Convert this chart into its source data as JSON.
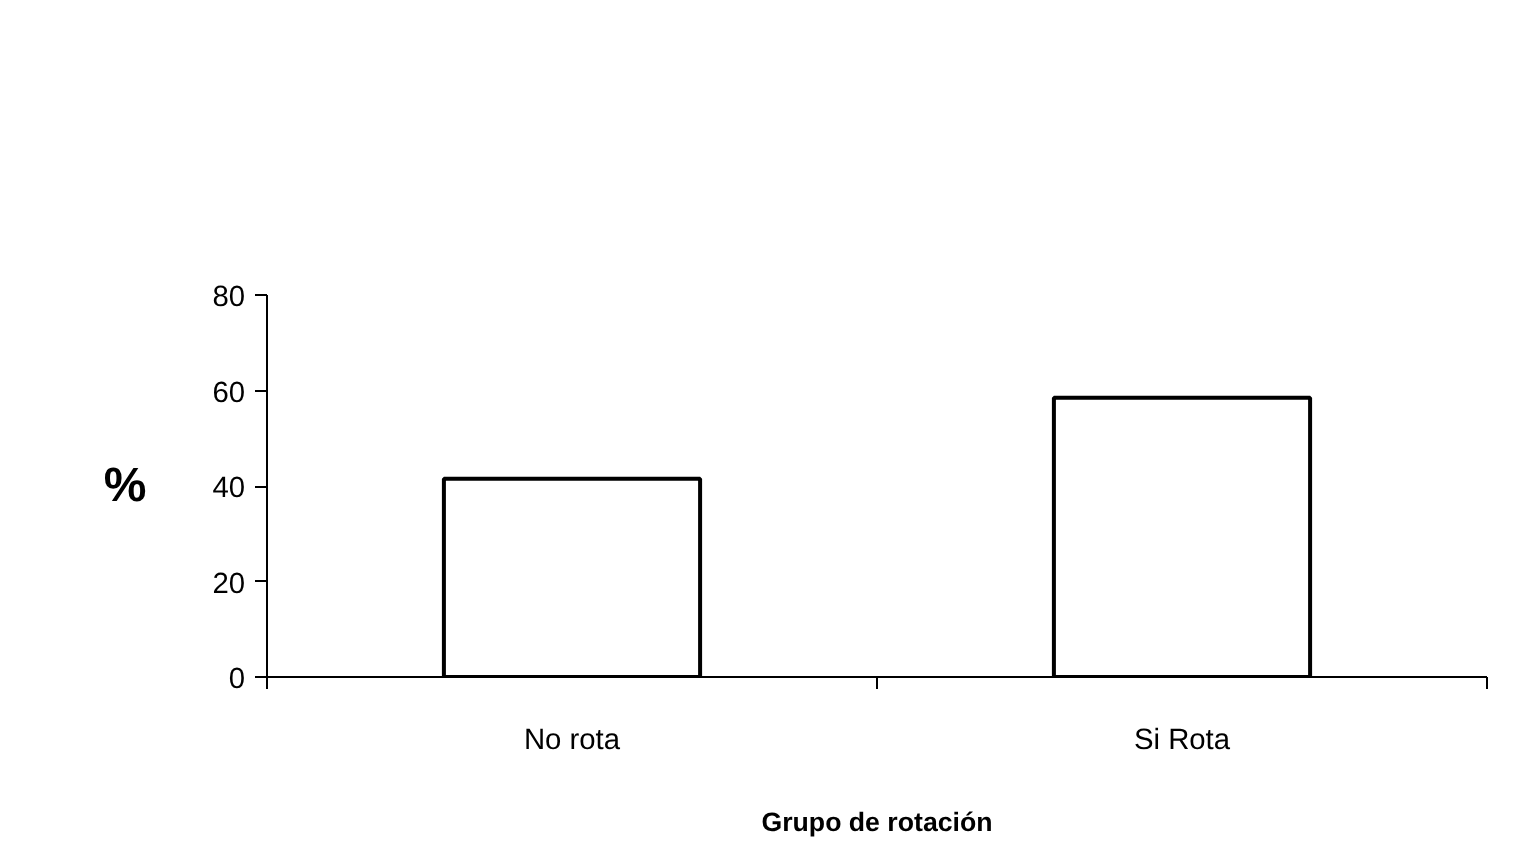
{
  "chart_data": {
    "type": "bar",
    "categories": [
      "No rota",
      "Si Rota"
    ],
    "values": [
      41.5,
      58.5
    ],
    "color": "#ffffff",
    "ylim": [
      0,
      80
    ],
    "yticks": [
      0,
      20,
      40,
      60,
      80
    ],
    "ylabel": "%",
    "xlabel": "Grupo de rotación",
    "grid": false
  }
}
